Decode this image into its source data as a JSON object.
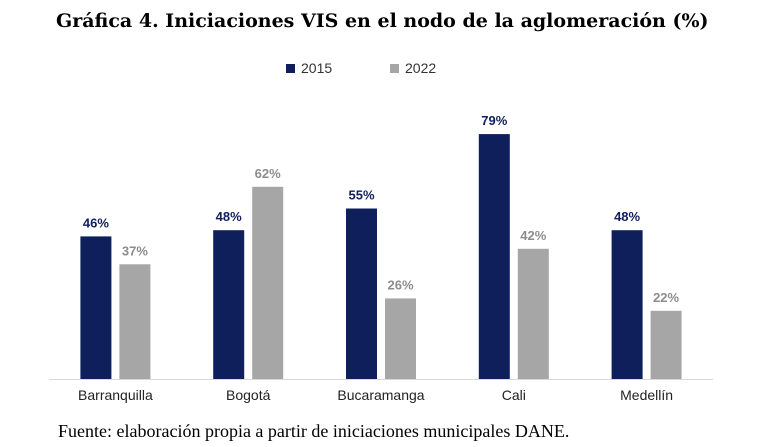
{
  "title": "Gráfica 4. Iniciaciones VIS en el nodo de la aglomeración (%)",
  "source": "Fuente: elaboración propia a partir de iniciaciones municipales DANE.",
  "chart_data": {
    "type": "bar",
    "categories": [
      "Barranquilla",
      "Bogotá",
      "Bucaramanga",
      "Cali",
      "Medellín"
    ],
    "series": [
      {
        "name": "2015",
        "values": [
          46,
          48,
          55,
          79,
          48
        ],
        "labels": [
          "46%",
          "48%",
          "55%",
          "79%",
          "48%"
        ],
        "color": "#0f1f5c"
      },
      {
        "name": "2022",
        "values": [
          37,
          62,
          26,
          42,
          22
        ],
        "labels": [
          "37%",
          "62%",
          "26%",
          "42%",
          "22%"
        ],
        "color": "#a6a6a6"
      }
    ],
    "ylim": [
      0,
      100
    ],
    "grid": false,
    "legend": "top-center"
  }
}
